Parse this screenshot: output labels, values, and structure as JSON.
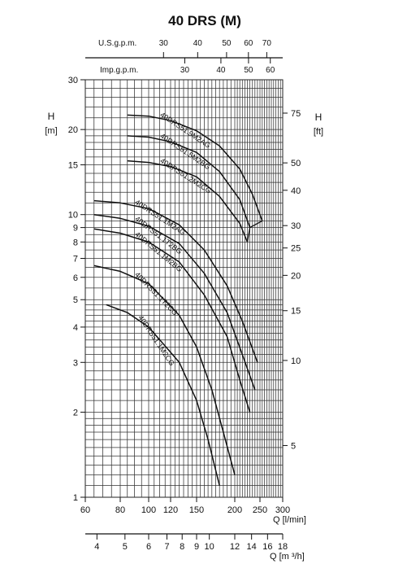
{
  "chart_data": {
    "type": "line",
    "title": "40 DRS (M)",
    "x_axis": {
      "label": "Q [l/min]",
      "range": [
        60,
        300
      ],
      "ticks": [
        60,
        80,
        100,
        120,
        150,
        200,
        250,
        300
      ]
    },
    "y_axis_left": {
      "label": "H",
      "unit": "[m]",
      "scale": "log",
      "range": [
        1,
        30
      ],
      "ticks": [
        1,
        2,
        3,
        4,
        5,
        6,
        7,
        8,
        9,
        10,
        15,
        20,
        30
      ]
    },
    "y_axis_right": {
      "label": "H",
      "unit": "[ft]",
      "ticks": [
        5,
        10,
        15,
        20,
        25,
        30,
        40,
        50,
        75
      ]
    },
    "top_axis_us": {
      "label": "U.S.g.p.m.",
      "ticks": [
        30,
        40,
        50,
        60,
        70
      ]
    },
    "top_axis_imp": {
      "label": "Imp.g.p.m.",
      "ticks": [
        30,
        40,
        50,
        60
      ]
    },
    "bottom_axis_m3h": {
      "label": "Q [m ³/h]",
      "ticks": [
        4,
        5,
        6,
        7,
        8,
        9,
        10,
        12,
        14,
        16,
        18
      ]
    },
    "grid": true,
    "series": [
      {
        "name": "40DRS51.9M2AG",
        "x": [
          85,
          100,
          120,
          150,
          180,
          210,
          235,
          255
        ],
        "y": [
          22.5,
          22.3,
          21.5,
          19.8,
          17.5,
          14.5,
          11.8,
          9.5
        ]
      },
      {
        "name": "40DRS51.5M2BG",
        "x": [
          85,
          100,
          120,
          150,
          180,
          210,
          230
        ],
        "y": [
          19.0,
          18.8,
          18.1,
          16.6,
          14.2,
          11.3,
          9.0
        ]
      },
      {
        "name": "40DRS51.2M2CG",
        "x": [
          85,
          100,
          120,
          150,
          180,
          210,
          225
        ],
        "y": [
          15.5,
          15.3,
          14.8,
          13.6,
          11.6,
          9.3,
          8.0
        ]
      },
      {
        "name": "40DRS51.1M2AG",
        "x": [
          65,
          80,
          100,
          130,
          160,
          190,
          215,
          245
        ],
        "y": [
          11.2,
          11.0,
          10.5,
          9.2,
          7.5,
          5.6,
          4.2,
          3.0
        ]
      },
      {
        "name": "40DRS51.1T2BG",
        "x": [
          65,
          80,
          100,
          130,
          160,
          190,
          215,
          240
        ],
        "y": [
          10.0,
          9.7,
          9.1,
          7.9,
          6.2,
          4.5,
          3.2,
          2.4
        ]
      },
      {
        "name": "40DRS51.1M2BG",
        "x": [
          65,
          80,
          100,
          130,
          160,
          190,
          210,
          230
        ],
        "y": [
          8.9,
          8.6,
          8.0,
          6.8,
          5.2,
          3.7,
          2.6,
          2.0
        ]
      },
      {
        "name": "40DRS51.1T2CG",
        "x": [
          65,
          80,
          100,
          130,
          150,
          170,
          185,
          200
        ],
        "y": [
          6.6,
          6.3,
          5.7,
          4.4,
          3.4,
          2.4,
          1.7,
          1.2
        ]
      },
      {
        "name": "40DRS51.1M2CG",
        "x": [
          72,
          85,
          100,
          130,
          150,
          165,
          180
        ],
        "y": [
          4.8,
          4.5,
          4.0,
          3.0,
          2.2,
          1.6,
          1.1
        ]
      }
    ]
  }
}
